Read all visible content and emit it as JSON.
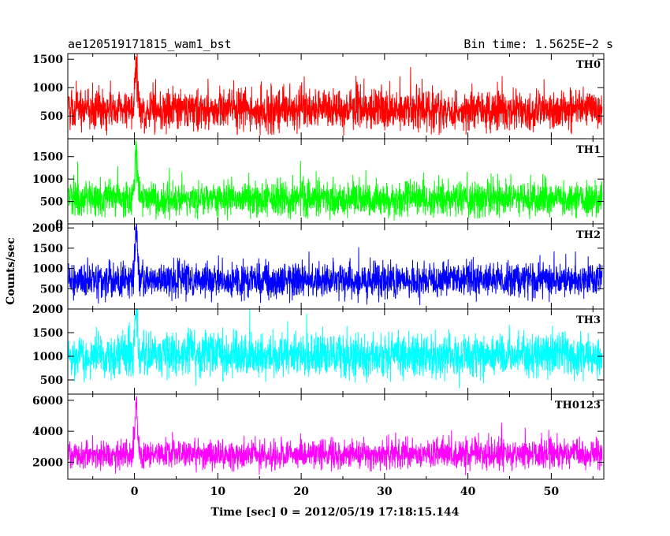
{
  "header": {
    "left_title": "ae120519171815_wam1_bst",
    "right_title": "Bin time: 1.5625E−2 s"
  },
  "chart_data": {
    "type": "line",
    "shared_x": {
      "label": "Time [sec] 0 = 2012/05/19 17:18:15.144",
      "range": [
        -8,
        56.3
      ],
      "ticks": [
        0,
        10,
        20,
        30,
        40,
        50
      ],
      "tick_labels": [
        "0",
        "10",
        "20",
        "30",
        "40",
        "50"
      ]
    },
    "ylabel": "Counts/sec",
    "panels": [
      {
        "name": "TH0",
        "color": "#ff0000",
        "ylim": [
          100,
          1600
        ],
        "yticks": [
          500,
          1000,
          1500
        ],
        "ytick_labels": [
          "500",
          "1000",
          "1500"
        ],
        "series": {
          "baseline": 600,
          "noise_sd": 180,
          "min": 150,
          "burst_peak": 1600,
          "burst_time": 0.2
        }
      },
      {
        "name": "TH1",
        "color": "#00ff00",
        "ylim": [
          0,
          1900
        ],
        "yticks": [
          0,
          500,
          1000,
          1500
        ],
        "ytick_labels": [
          "0",
          "500",
          "1000",
          "1500"
        ],
        "series": {
          "baseline": 550,
          "noise_sd": 190,
          "min": 60,
          "burst_peak": 1900,
          "burst_time": 0.2
        }
      },
      {
        "name": "TH2",
        "color": "#0000ff",
        "ylim": [
          0,
          2100
        ],
        "yticks": [
          0,
          500,
          1000,
          1500,
          2000
        ],
        "ytick_labels": [
          "0",
          "500",
          "1000",
          "1500",
          "2000"
        ],
        "series": {
          "baseline": 700,
          "noise_sd": 210,
          "min": 30,
          "burst_peak": 2100,
          "burst_time": 0.2
        }
      },
      {
        "name": "TH3",
        "color": "#00ffff",
        "ylim": [
          200,
          2000
        ],
        "yticks": [
          500,
          1000,
          1500,
          2000
        ],
        "ytick_labels": [
          "500",
          "1000",
          "1500",
          "2000"
        ],
        "series": {
          "baseline": 1000,
          "noise_sd": 230,
          "min": 250,
          "burst_peak": 2000,
          "burst_time": 0.2
        }
      },
      {
        "name": "TH0123",
        "color": "#ff00ff",
        "ylim": [
          900,
          6400
        ],
        "yticks": [
          2000,
          4000,
          6000
        ],
        "ytick_labels": [
          "2000",
          "4000",
          "6000"
        ],
        "series": {
          "baseline": 2500,
          "noise_sd": 450,
          "min": 1000,
          "burst_peak": 6400,
          "burst_time": 0.2
        }
      }
    ]
  }
}
